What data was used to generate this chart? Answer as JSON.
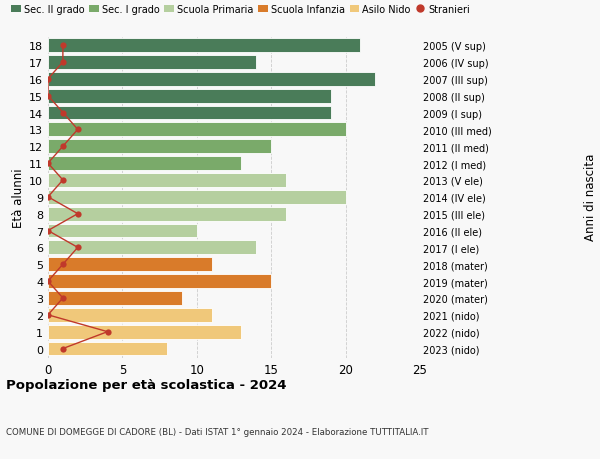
{
  "ages": [
    18,
    17,
    16,
    15,
    14,
    13,
    12,
    11,
    10,
    9,
    8,
    7,
    6,
    5,
    4,
    3,
    2,
    1,
    0
  ],
  "anni_nascita": [
    "2005 (V sup)",
    "2006 (IV sup)",
    "2007 (III sup)",
    "2008 (II sup)",
    "2009 (I sup)",
    "2010 (III med)",
    "2011 (II med)",
    "2012 (I med)",
    "2013 (V ele)",
    "2014 (IV ele)",
    "2015 (III ele)",
    "2016 (II ele)",
    "2017 (I ele)",
    "2018 (mater)",
    "2019 (mater)",
    "2020 (mater)",
    "2021 (nido)",
    "2022 (nido)",
    "2023 (nido)"
  ],
  "bar_values": [
    21,
    14,
    22,
    19,
    19,
    20,
    15,
    13,
    16,
    20,
    16,
    10,
    14,
    11,
    15,
    9,
    11,
    13,
    8
  ],
  "stranieri": [
    1,
    1,
    0,
    0,
    1,
    2,
    1,
    0,
    1,
    0,
    2,
    0,
    2,
    1,
    0,
    1,
    0,
    4,
    1
  ],
  "bar_colors": [
    "#4a7c59",
    "#4a7c59",
    "#4a7c59",
    "#4a7c59",
    "#4a7c59",
    "#7aaa6a",
    "#7aaa6a",
    "#7aaa6a",
    "#b5cf9f",
    "#b5cf9f",
    "#b5cf9f",
    "#b5cf9f",
    "#b5cf9f",
    "#d97b2a",
    "#d97b2a",
    "#d97b2a",
    "#f0c87a",
    "#f0c87a",
    "#f0c87a"
  ],
  "color_sec2": "#4a7c59",
  "color_sec1": "#7aaa6a",
  "color_prim": "#b5cf9f",
  "color_infanzia": "#d97b2a",
  "color_nido": "#f0c87a",
  "color_stranieri": "#c0392b",
  "title": "Popolazione per età scolastica - 2024",
  "subtitle": "COMUNE DI DOMEGGE DI CADORE (BL) - Dati ISTAT 1° gennaio 2024 - Elaborazione TUTTITALIA.IT",
  "ylabel": "Età alunni",
  "right_label": "Anni di nascita",
  "xlim": [
    0,
    25
  ],
  "xticks": [
    0,
    5,
    10,
    15,
    20,
    25
  ],
  "legend_labels": [
    "Sec. II grado",
    "Sec. I grado",
    "Scuola Primaria",
    "Scuola Infanzia",
    "Asilo Nido",
    "Stranieri"
  ],
  "bg_color": "#f8f8f8",
  "bar_height": 0.82
}
